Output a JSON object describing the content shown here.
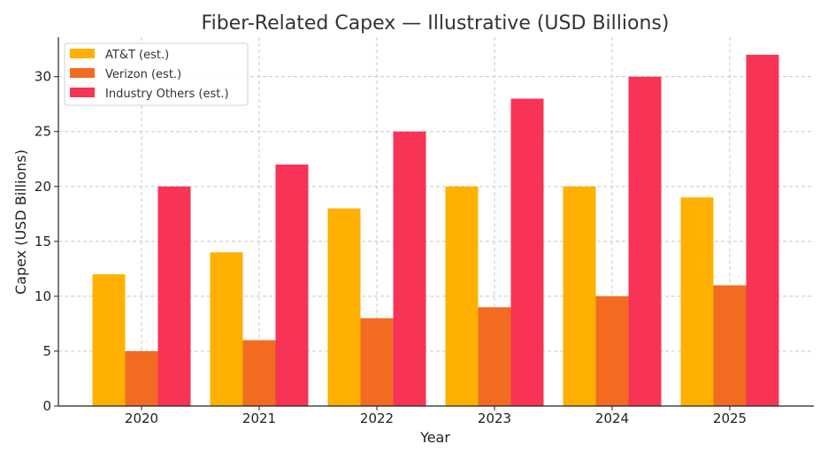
{
  "chart_data": {
    "type": "bar",
    "title": "Fiber-Related Capex — Illustrative (USD Billions)",
    "xlabel": "Year",
    "ylabel": "Capex (USD Billions)",
    "categories": [
      "2020",
      "2021",
      "2022",
      "2023",
      "2024",
      "2025"
    ],
    "ylim": [
      0,
      33.6
    ],
    "yticks": [
      0,
      5,
      10,
      15,
      20,
      25,
      30
    ],
    "grid": true,
    "legend_position": "top-left",
    "series": [
      {
        "name": "AT&T (est.)",
        "color": "#ffb000",
        "values": [
          12,
          14,
          18,
          20,
          20,
          19
        ]
      },
      {
        "name": "Verizon (est.)",
        "color": "#f26b21",
        "values": [
          5,
          6,
          8,
          9,
          10,
          11
        ]
      },
      {
        "name": "Industry Others (est.)",
        "color": "#f73356",
        "values": [
          20,
          22,
          25,
          28,
          30,
          32
        ]
      }
    ]
  }
}
